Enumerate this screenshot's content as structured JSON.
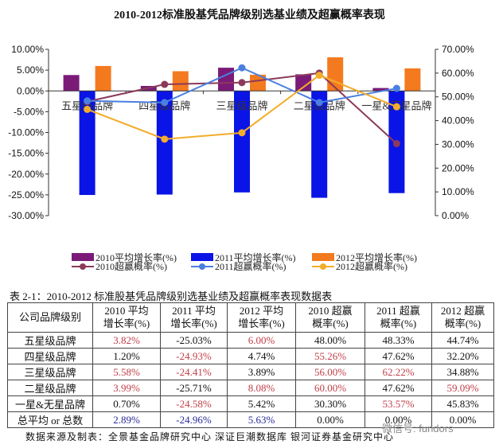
{
  "chart_data": {
    "type": "bar+line",
    "title": "2010-2012标准股基凭品牌级别选基业绩及超赢概率表现",
    "categories": [
      "五星级品牌",
      "四星级品牌",
      "三星级品牌",
      "二星级品牌",
      "一星&无星品牌"
    ],
    "left_axis": {
      "ylim": [
        -30,
        10
      ],
      "ticks": [
        "10.00%",
        "5.00%",
        "0.00%",
        "-5.00%",
        "-10.00%",
        "-15.00%",
        "-20.00%",
        "-25.00%",
        "-30.00%"
      ]
    },
    "right_axis": {
      "ylim": [
        0,
        70
      ],
      "ticks": [
        "70.00%",
        "60.00%",
        "50.00%",
        "40.00%",
        "30.00%",
        "20.00%",
        "10.00%",
        "0.00%"
      ]
    },
    "bar_series": [
      {
        "name": "2010平均增长率(%)",
        "color": "#7b1b78",
        "values": [
          3.82,
          1.2,
          5.58,
          3.99,
          0.7
        ]
      },
      {
        "name": "2011平均增长率(%)",
        "color": "#0a14e6",
        "values": [
          -25.03,
          -24.93,
          -24.41,
          -25.71,
          -24.58
        ]
      },
      {
        "name": "2012平均增长率(%)",
        "color": "#f47a1f",
        "values": [
          6.0,
          4.74,
          3.89,
          8.08,
          5.42
        ]
      }
    ],
    "line_series": [
      {
        "name": "2010超赢概率(%)",
        "color": "#8b3a5a",
        "values": [
          48.0,
          55.26,
          56.0,
          60.0,
          30.3
        ]
      },
      {
        "name": "2011超赢概率(%)",
        "color": "#4a7fe0",
        "values": [
          48.33,
          47.62,
          62.22,
          47.62,
          53.57
        ]
      },
      {
        "name": "2012超赢概率(%)",
        "color": "#f3ad2a",
        "values": [
          44.74,
          32.2,
          34.88,
          59.09,
          45.83
        ]
      }
    ],
    "legend": "bottom"
  },
  "table": {
    "caption": "表 2-1：2010-2012 标准股基凭品牌级别选基业绩及超赢概率表现数据表",
    "headers": [
      [
        "公司品牌级别",
        ""
      ],
      [
        "2010 平均",
        "增长率(%)"
      ],
      [
        "2011 平均",
        "增长率(%)"
      ],
      [
        "2012 平均",
        "增长率(%)"
      ],
      [
        "2010 超赢",
        "概率(%)"
      ],
      [
        "2011 超赢",
        "概率(%)"
      ],
      [
        "2012 超赢",
        "概率(%)"
      ]
    ],
    "rows": [
      [
        {
          "t": "五星级品牌"
        },
        {
          "t": "3.82%",
          "c": "red"
        },
        {
          "t": "-25.03%"
        },
        {
          "t": "6.00%",
          "c": "red"
        },
        {
          "t": "48.00%"
        },
        {
          "t": "48.33%"
        },
        {
          "t": "44.74%"
        }
      ],
      [
        {
          "t": "四星级品牌"
        },
        {
          "t": "1.20%"
        },
        {
          "t": "-24.93%",
          "c": "red"
        },
        {
          "t": "4.74%"
        },
        {
          "t": "55.26%",
          "c": "red"
        },
        {
          "t": "47.62%"
        },
        {
          "t": "32.20%"
        }
      ],
      [
        {
          "t": "三星级品牌"
        },
        {
          "t": "5.58%",
          "c": "red"
        },
        {
          "t": "-24.41%",
          "c": "red"
        },
        {
          "t": "3.89%"
        },
        {
          "t": "56.00%",
          "c": "red"
        },
        {
          "t": "62.22%",
          "c": "red"
        },
        {
          "t": "34.88%"
        }
      ],
      [
        {
          "t": "二星级品牌"
        },
        {
          "t": "3.99%",
          "c": "red"
        },
        {
          "t": "-25.71%"
        },
        {
          "t": "8.08%",
          "c": "red"
        },
        {
          "t": "60.00%",
          "c": "red"
        },
        {
          "t": "47.62%"
        },
        {
          "t": "59.09%",
          "c": "red"
        }
      ],
      [
        {
          "t": "一星&无星品牌"
        },
        {
          "t": "0.70%"
        },
        {
          "t": "-24.58%",
          "c": "red"
        },
        {
          "t": "5.42%"
        },
        {
          "t": "30.30%"
        },
        {
          "t": "53.57%",
          "c": "red"
        },
        {
          "t": "45.83%"
        }
      ],
      [
        {
          "t": "总平均 or 总数"
        },
        {
          "t": "2.89%",
          "c": "blue"
        },
        {
          "t": "-24.96%",
          "c": "blue"
        },
        {
          "t": "5.63%",
          "c": "blue"
        },
        {
          "t": "0.00%"
        },
        {
          "t": "0.00%"
        },
        {
          "t": "0.00%"
        }
      ]
    ]
  },
  "source": "数据来源及制表：全景基金品牌研究中心 深证巨潮数据库 银河证券基金研究中心",
  "watermark": "微信号: fundors"
}
